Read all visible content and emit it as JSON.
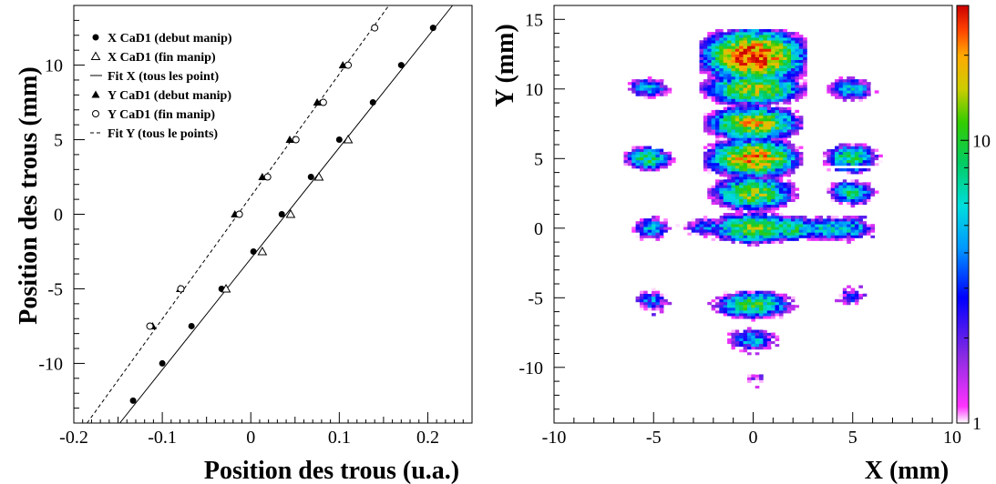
{
  "chart_data": [
    {
      "type": "scatter",
      "xlabel": "Position des trous (u.a.)",
      "ylabel": "Position des trous (mm)",
      "xlim": [
        -0.2,
        0.25
      ],
      "ylim": [
        -14,
        14
      ],
      "x_ticks": [
        -0.2,
        -0.1,
        0,
        0.1,
        0.2
      ],
      "x_tick_labels": [
        "-0.2",
        "-0.1",
        "0",
        "0.1",
        "0.2"
      ],
      "y_ticks": [
        -10,
        -5,
        0,
        5,
        10
      ],
      "y_tick_labels": [
        "-10",
        "-5",
        "0",
        "5",
        "10"
      ],
      "legend_position": "top-left",
      "series": [
        {
          "name": "X CaD1 (debut manip)",
          "marker": "filled-circle",
          "x": [
            -0.133,
            -0.1,
            -0.067,
            -0.033,
            0.003,
            0.035,
            0.068,
            0.1,
            0.138,
            0.17,
            0.206
          ],
          "y": [
            -12.5,
            -10,
            -7.5,
            -5,
            -2.5,
            0,
            2.5,
            5,
            7.5,
            10,
            12.5
          ]
        },
        {
          "name": "X CaD1 (fin manip)",
          "marker": "open-triangle",
          "x": [
            -0.028,
            0.013,
            0.045,
            0.077,
            0.11
          ],
          "y": [
            -5,
            -2.5,
            0,
            2.5,
            5
          ]
        },
        {
          "name": "Fit X (tous les point)",
          "line": "solid",
          "x": [
            -0.148,
            0.228
          ],
          "y": [
            -14,
            14
          ]
        },
        {
          "name": "Y CaD1 (debut manip)",
          "marker": "filled-triangle",
          "x": [
            -0.111,
            -0.08,
            -0.018,
            0.013,
            0.044,
            0.075,
            0.104
          ],
          "y": [
            -7.5,
            -5,
            0,
            2.5,
            5,
            7.5,
            10
          ]
        },
        {
          "name": "Y CaD1 (fin manip)",
          "marker": "open-circle",
          "x": [
            -0.114,
            -0.079,
            -0.013,
            0.019,
            0.051,
            0.082,
            0.11,
            0.14
          ],
          "y": [
            -7.5,
            -5,
            0,
            2.5,
            5,
            7.5,
            10,
            12.5
          ]
        },
        {
          "name": "Fit Y (tous le points)",
          "line": "dashed",
          "x": [
            -0.185,
            0.156
          ],
          "y": [
            -14,
            14
          ]
        }
      ]
    },
    {
      "type": "heatmap",
      "xlabel": "X (mm)",
      "ylabel": "Y (mm)",
      "xlim": [
        -10,
        10
      ],
      "ylim": [
        -14,
        16
      ],
      "x_ticks": [
        -10,
        -5,
        0,
        5,
        10
      ],
      "x_tick_labels": [
        "-10",
        "-5",
        "0",
        "5",
        "10"
      ],
      "y_ticks": [
        -10,
        -5,
        0,
        5,
        10,
        15
      ],
      "y_tick_labels": [
        "-10",
        "-5",
        "0",
        "5",
        "10",
        "15"
      ],
      "colorbar": {
        "scale": "log",
        "min": 1,
        "max": 30,
        "ticks": [
          1,
          10
        ],
        "tick_labels": [
          "1",
          "10"
        ]
      },
      "clusters": [
        {
          "x": 0,
          "y": 12.3,
          "peak": 28,
          "sx": 1.2,
          "sy": 0.9
        },
        {
          "x": 0,
          "y": 10,
          "peak": 16,
          "sx": 1.2,
          "sy": 0.55
        },
        {
          "x": 0,
          "y": 7.6,
          "peak": 18,
          "sx": 1.1,
          "sy": 0.6
        },
        {
          "x": 0,
          "y": 5,
          "peak": 22,
          "sx": 1.1,
          "sy": 0.65
        },
        {
          "x": 0,
          "y": 2.5,
          "peak": 14,
          "sx": 1.0,
          "sy": 0.6
        },
        {
          "x": 0,
          "y": 0,
          "peak": 12,
          "sx": 1.1,
          "sy": 0.55
        },
        {
          "x": 1.8,
          "y": 0,
          "peak": 9,
          "sx": 0.9,
          "sy": 0.45
        },
        {
          "x": 3.7,
          "y": 0,
          "peak": 7,
          "sx": 0.8,
          "sy": 0.45
        },
        {
          "x": -2.3,
          "y": 0,
          "peak": 4,
          "sx": 0.7,
          "sy": 0.4
        },
        {
          "x": 0,
          "y": -5.5,
          "peak": 10,
          "sx": 1.0,
          "sy": 0.5
        },
        {
          "x": 0,
          "y": -8,
          "peak": 5,
          "sx": 0.7,
          "sy": 0.45
        },
        {
          "x": 0.2,
          "y": -10.7,
          "peak": 2,
          "sx": 0.35,
          "sy": 0.3
        },
        {
          "x": 4.9,
          "y": 9.9,
          "peak": 6,
          "sx": 0.6,
          "sy": 0.45
        },
        {
          "x": 4.9,
          "y": 5,
          "peak": 9,
          "sx": 0.7,
          "sy": 0.5
        },
        {
          "x": 4.9,
          "y": 2.5,
          "peak": 8,
          "sx": 0.6,
          "sy": 0.45
        },
        {
          "x": 4.9,
          "y": 0,
          "peak": 6,
          "sx": 0.6,
          "sy": 0.45
        },
        {
          "x": 4.9,
          "y": -5,
          "peak": 3,
          "sx": 0.4,
          "sy": 0.4
        },
        {
          "x": -5.2,
          "y": 10,
          "peak": 5,
          "sx": 0.6,
          "sy": 0.4
        },
        {
          "x": -5.2,
          "y": 5,
          "peak": 9,
          "sx": 0.6,
          "sy": 0.45
        },
        {
          "x": -5.2,
          "y": 0,
          "peak": 5,
          "sx": 0.5,
          "sy": 0.45
        },
        {
          "x": -5.2,
          "y": -5.3,
          "peak": 4,
          "sx": 0.5,
          "sy": 0.45
        }
      ]
    }
  ]
}
